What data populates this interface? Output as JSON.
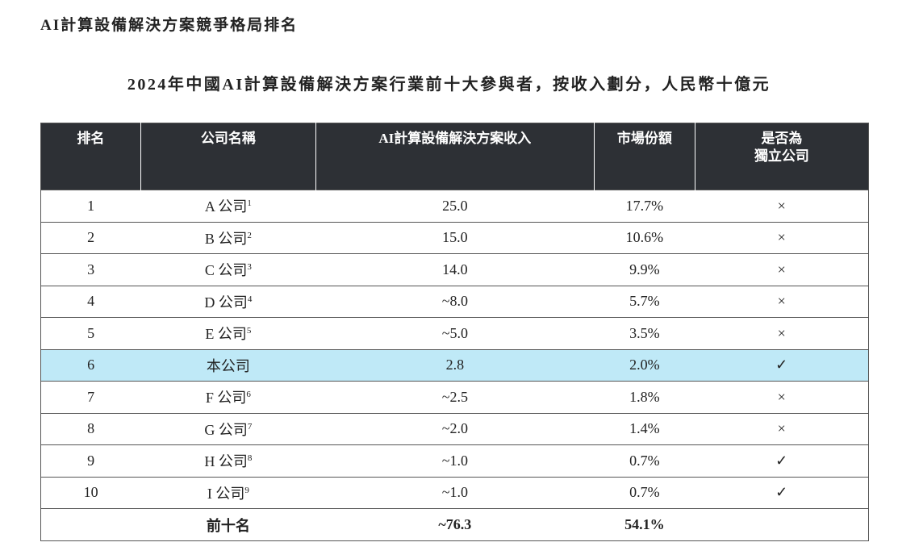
{
  "header": {
    "title": "AI計算設備解決方案競爭格局排名",
    "subtitle": "2024年中國AI計算設備解決方案行業前十大參與者，按收入劃分，人民幣十億元"
  },
  "table": {
    "columns": [
      "排名",
      "公司名稱",
      "AI計算設備解決方案收入",
      "市場份額",
      "是否為\n獨立公司"
    ],
    "rows": [
      {
        "rank": "1",
        "company": "A 公司",
        "note": "1",
        "revenue": "25.0",
        "share": "17.7%",
        "independent": "×"
      },
      {
        "rank": "2",
        "company": "B 公司",
        "note": "2",
        "revenue": "15.0",
        "share": "10.6%",
        "independent": "×"
      },
      {
        "rank": "3",
        "company": "C 公司",
        "note": "3",
        "revenue": "14.0",
        "share": "9.9%",
        "independent": "×"
      },
      {
        "rank": "4",
        "company": "D 公司",
        "note": "4",
        "revenue": "~8.0",
        "share": "5.7%",
        "independent": "×"
      },
      {
        "rank": "5",
        "company": "E 公司",
        "note": "5",
        "revenue": "~5.0",
        "share": "3.5%",
        "independent": "×"
      },
      {
        "rank": "6",
        "company": "本公司",
        "revenue": "2.8",
        "share": "2.0%",
        "independent": "✓"
      },
      {
        "rank": "7",
        "company": "F 公司",
        "note": "6",
        "revenue": "~2.5",
        "share": "1.8%",
        "independent": "×"
      },
      {
        "rank": "8",
        "company": "G 公司",
        "note": "7",
        "revenue": "~2.0",
        "share": "1.4%",
        "independent": "×"
      },
      {
        "rank": "9",
        "company": "H 公司",
        "note": "8",
        "revenue": "~1.0",
        "share": "0.7%",
        "independent": "✓"
      },
      {
        "rank": "10",
        "company": "I 公司",
        "note": "9",
        "revenue": "~1.0",
        "share": "0.7%",
        "independent": "✓"
      }
    ],
    "total": {
      "label": "前十名",
      "revenue": "~76.3",
      "share": "54.1%"
    }
  }
}
